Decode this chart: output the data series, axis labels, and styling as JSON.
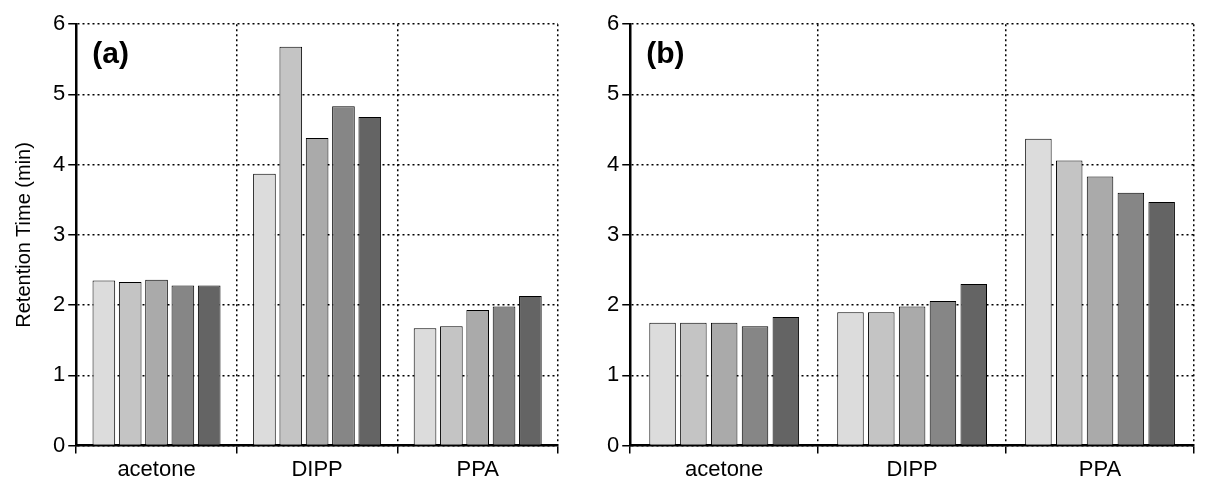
{
  "chart_data": [
    {
      "type": "bar",
      "title": "(a)",
      "ylabel": "Retention Time (min)",
      "categories": [
        "acetone",
        "DIPP",
        "PPA"
      ],
      "series": [
        {
          "color": "#dcdcdc",
          "values": [
            2.35,
            3.87,
            1.67
          ]
        },
        {
          "color": "#c4c4c4",
          "values": [
            2.33,
            5.68,
            1.7
          ]
        },
        {
          "color": "#aaaaaa",
          "values": [
            2.36,
            4.38,
            1.93
          ]
        },
        {
          "color": "#868686",
          "values": [
            2.28,
            4.83,
            1.98
          ]
        },
        {
          "color": "#646464",
          "values": [
            2.28,
            4.68,
            2.13
          ]
        }
      ],
      "ylim": [
        0,
        6
      ],
      "yticks": [
        0,
        1,
        2,
        3,
        4,
        5,
        6
      ],
      "grid": true,
      "legend": false
    },
    {
      "type": "bar",
      "title": "(b)",
      "categories": [
        "acetone",
        "DIPP",
        "PPA"
      ],
      "series": [
        {
          "color": "#dcdcdc",
          "values": [
            1.75,
            1.9,
            4.37
          ]
        },
        {
          "color": "#c4c4c4",
          "values": [
            1.75,
            1.9,
            4.06
          ]
        },
        {
          "color": "#aaaaaa",
          "values": [
            1.75,
            1.98,
            3.83
          ]
        },
        {
          "color": "#868686",
          "values": [
            1.7,
            2.06,
            3.6
          ]
        },
        {
          "color": "#646464",
          "values": [
            1.83,
            2.3,
            3.47
          ]
        }
      ],
      "ylim": [
        0,
        6
      ],
      "yticks": [
        0,
        1,
        2,
        3,
        4,
        5,
        6
      ],
      "grid": true,
      "legend": false
    }
  ]
}
